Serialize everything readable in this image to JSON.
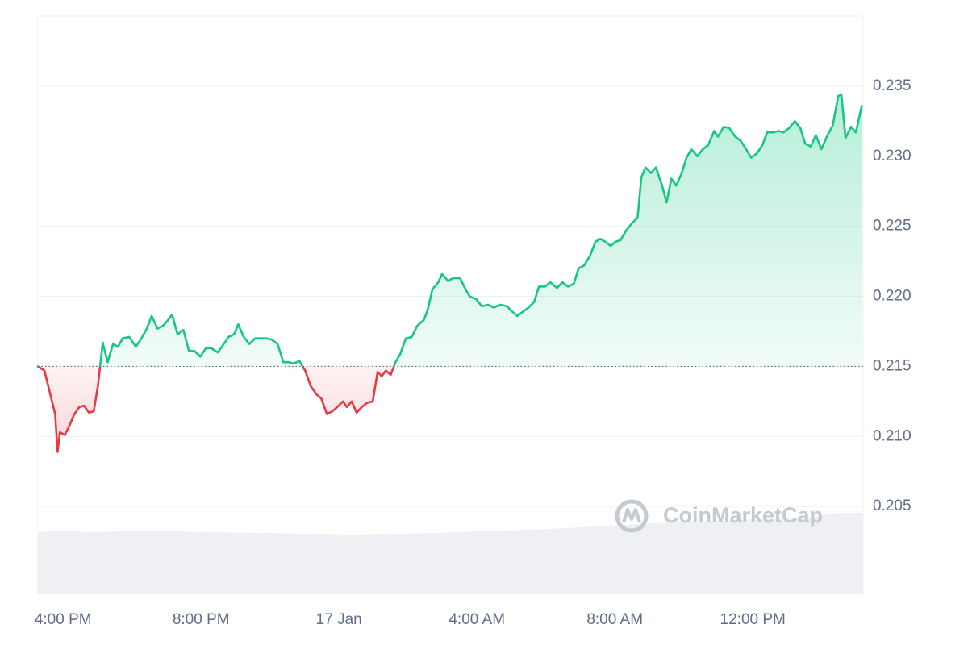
{
  "chart_data": {
    "type": "line",
    "watermark": "CoinMarketCap",
    "baseline": 0.215,
    "color_up": "#16c784",
    "color_down": "#ea3943",
    "grid": true,
    "xlim": [
      15.27,
      39.2
    ],
    "ylim": [
      0.19874,
      0.24
    ],
    "xticks": [
      {
        "value": 16,
        "label": "4:00 PM"
      },
      {
        "value": 20,
        "label": "8:00 PM"
      },
      {
        "value": 24,
        "label": "17 Jan"
      },
      {
        "value": 28,
        "label": "4:00 AM"
      },
      {
        "value": 32,
        "label": "8:00 AM"
      },
      {
        "value": 36,
        "label": "12:00 PM"
      }
    ],
    "yticks": [
      0.205,
      {
        "value": 0.21,
        "label": "0.210"
      },
      0.215,
      {
        "value": 0.22,
        "label": "0.220"
      },
      0.225,
      {
        "value": 0.23,
        "label": "0.230"
      },
      0.235
    ],
    "x": [
      15.27,
      15.46,
      15.63,
      15.77,
      15.84,
      15.91,
      16.05,
      16.19,
      16.33,
      16.47,
      16.61,
      16.75,
      16.89,
      17.01,
      17.15,
      17.29,
      17.45,
      17.59,
      17.73,
      17.92,
      18.11,
      18.27,
      18.43,
      18.57,
      18.74,
      18.9,
      19.04,
      19.16,
      19.32,
      19.49,
      19.65,
      19.81,
      19.98,
      20.14,
      20.3,
      20.49,
      20.66,
      20.8,
      20.96,
      21.08,
      21.24,
      21.4,
      21.57,
      21.73,
      21.89,
      22.06,
      22.22,
      22.39,
      22.55,
      22.69,
      22.85,
      23.02,
      23.18,
      23.35,
      23.49,
      23.65,
      23.81,
      23.95,
      24.12,
      24.23,
      24.37,
      24.51,
      24.66,
      24.82,
      24.98,
      25.12,
      25.24,
      25.36,
      25.5,
      25.64,
      25.78,
      25.94,
      26.11,
      26.27,
      26.46,
      26.57,
      26.71,
      26.88,
      26.99,
      27.16,
      27.32,
      27.51,
      27.67,
      27.79,
      27.98,
      28.14,
      28.33,
      28.49,
      28.68,
      28.87,
      29.03,
      29.17,
      29.33,
      29.5,
      29.66,
      29.8,
      29.97,
      30.13,
      30.32,
      30.48,
      30.64,
      30.81,
      30.95,
      31.11,
      31.28,
      31.44,
      31.58,
      31.72,
      31.88,
      32.02,
      32.16,
      32.33,
      32.49,
      32.66,
      32.77,
      32.89,
      33.05,
      33.19,
      33.36,
      33.5,
      33.64,
      33.78,
      33.94,
      34.08,
      34.22,
      34.39,
      34.55,
      34.71,
      34.88,
      34.99,
      35.16,
      35.32,
      35.49,
      35.65,
      35.81,
      35.95,
      36.12,
      36.28,
      36.42,
      36.59,
      36.75,
      36.89,
      37.05,
      37.22,
      37.38,
      37.52,
      37.68,
      37.83,
      37.99,
      38.15,
      38.32,
      38.48,
      38.57,
      38.69,
      38.85,
      38.99,
      39.16
    ],
    "values": [
      0.215,
      0.2147,
      0.213,
      0.2116,
      0.2089,
      0.2103,
      0.2101,
      0.2108,
      0.2116,
      0.2121,
      0.2122,
      0.2117,
      0.2118,
      0.2136,
      0.2167,
      0.2153,
      0.2166,
      0.2164,
      0.217,
      0.2171,
      0.2164,
      0.217,
      0.2177,
      0.2186,
      0.2177,
      0.2179,
      0.2183,
      0.2187,
      0.2173,
      0.2176,
      0.2161,
      0.2161,
      0.2157,
      0.2163,
      0.2163,
      0.216,
      0.2166,
      0.2171,
      0.2173,
      0.218,
      0.2171,
      0.2166,
      0.217,
      0.217,
      0.217,
      0.2169,
      0.2166,
      0.2153,
      0.2153,
      0.2152,
      0.2154,
      0.2147,
      0.2136,
      0.213,
      0.2127,
      0.2116,
      0.2118,
      0.2121,
      0.2125,
      0.2121,
      0.2125,
      0.2117,
      0.2121,
      0.2124,
      0.2125,
      0.2146,
      0.2143,
      0.2147,
      0.2144,
      0.2153,
      0.2159,
      0.217,
      0.2171,
      0.2179,
      0.2183,
      0.219,
      0.2205,
      0.221,
      0.2216,
      0.2211,
      0.2213,
      0.2213,
      0.2205,
      0.22,
      0.2198,
      0.2193,
      0.2194,
      0.2192,
      0.2194,
      0.2193,
      0.2189,
      0.2186,
      0.2189,
      0.2192,
      0.2196,
      0.2207,
      0.2207,
      0.221,
      0.2206,
      0.221,
      0.2207,
      0.2209,
      0.222,
      0.2222,
      0.2229,
      0.2239,
      0.2241,
      0.2239,
      0.2236,
      0.2239,
      0.224,
      0.2247,
      0.2252,
      0.2256,
      0.2285,
      0.2292,
      0.2288,
      0.2292,
      0.228,
      0.2267,
      0.2284,
      0.2279,
      0.2288,
      0.2299,
      0.2305,
      0.23,
      0.2305,
      0.2308,
      0.2318,
      0.2314,
      0.2321,
      0.232,
      0.2314,
      0.2311,
      0.2305,
      0.2299,
      0.2302,
      0.2308,
      0.2317,
      0.2317,
      0.2318,
      0.2317,
      0.232,
      0.2325,
      0.232,
      0.2309,
      0.2307,
      0.2315,
      0.2305,
      0.2314,
      0.2322,
      0.2343,
      0.2344,
      0.2313,
      0.2321,
      0.2317,
      0.2336
    ]
  }
}
